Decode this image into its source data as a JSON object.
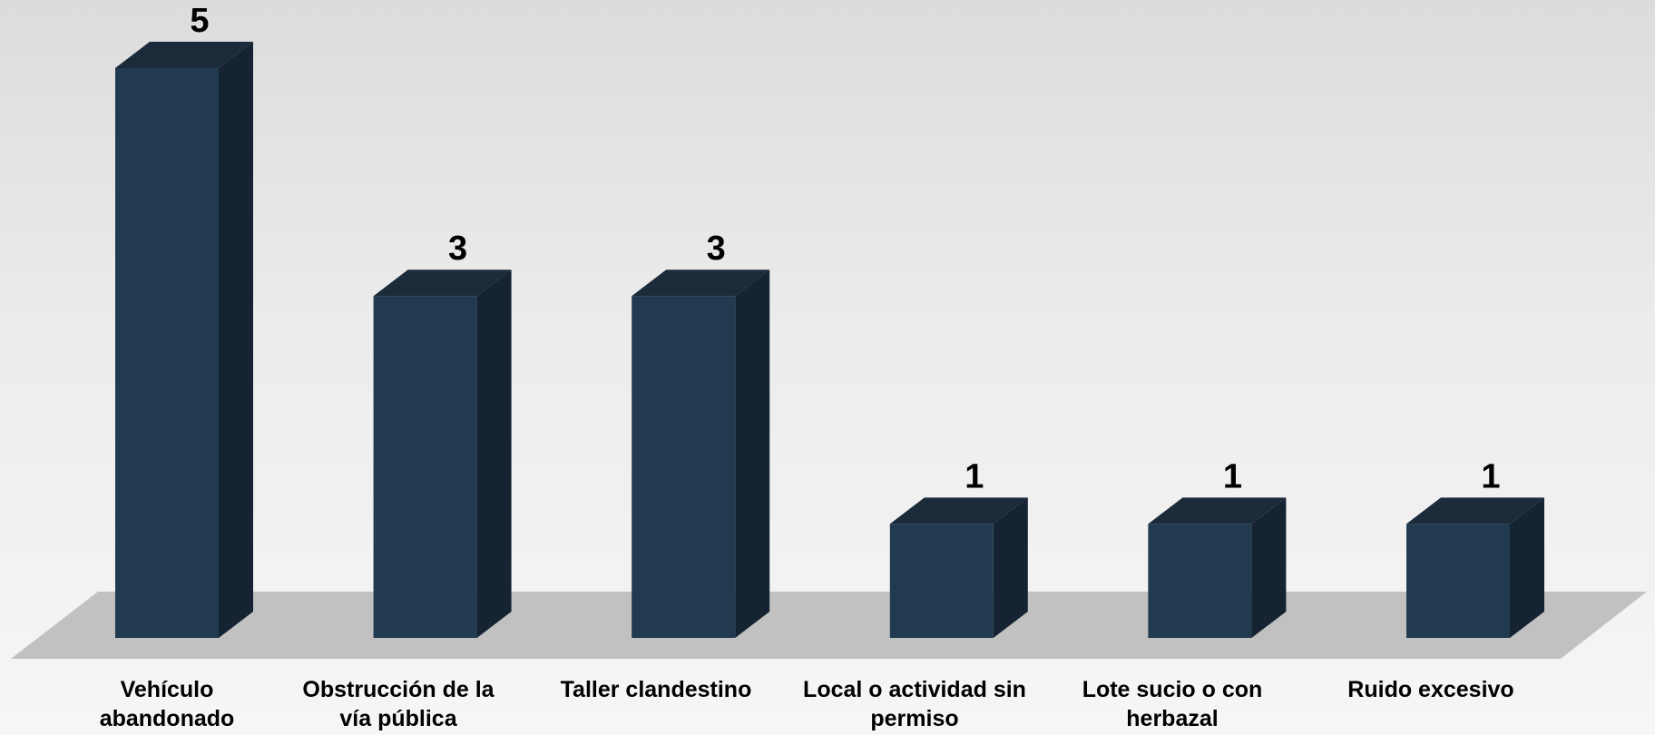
{
  "chart_data": {
    "type": "bar",
    "style": "3d",
    "categories": [
      "Vehículo abandonado",
      "Obstrucción de la vía pública",
      "Taller clandestino",
      "Local o actividad sin permiso",
      "Lote sucio o con herbazal",
      "Ruido excesivo"
    ],
    "values": [
      5,
      3,
      3,
      1,
      1,
      1
    ],
    "data_labels": [
      "5",
      "3",
      "3",
      "1",
      "1",
      "1"
    ],
    "ylim": [
      0,
      5
    ],
    "grid": false,
    "legend": "none",
    "title": "",
    "xlabel": "",
    "ylabel": ""
  },
  "colors": {
    "bar_front": "#213a4f",
    "bar_side": "#152332",
    "bar_top": "#1b2b3a",
    "floor": "#c1c1c1"
  }
}
